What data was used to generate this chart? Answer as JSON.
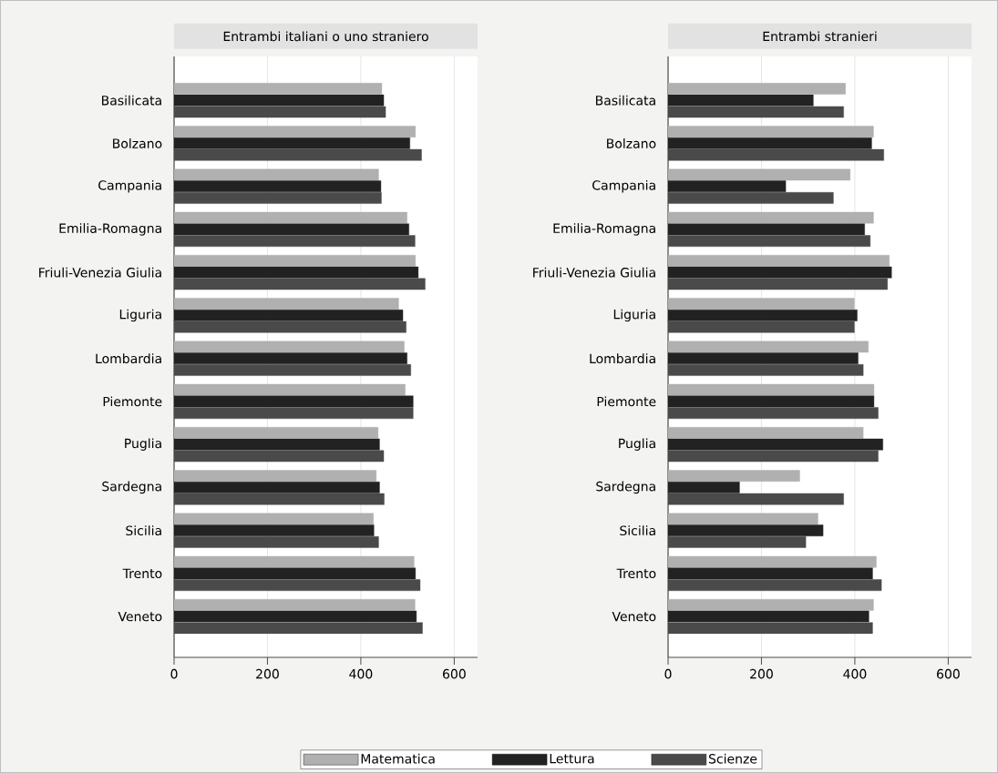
{
  "chart_data": [
    {
      "type": "bar",
      "orientation": "horizontal",
      "title": "Entrambi italiani o uno straniero",
      "categories": [
        "Basilicata",
        "Bolzano",
        "Campania",
        "Emilia-Romagna",
        "Friuli-Venezia Giulia",
        "Liguria",
        "Lombardia",
        "Piemonte",
        "Puglia",
        "Sardegna",
        "Sicilia",
        "Trento",
        "Veneto"
      ],
      "series": [
        {
          "name": "Matematica",
          "color": "#b0b0b0",
          "values": [
            445,
            517,
            438,
            499,
            517,
            481,
            493,
            495,
            437,
            433,
            427,
            514,
            516
          ]
        },
        {
          "name": "Lettura",
          "color": "#222222",
          "values": [
            449,
            505,
            443,
            503,
            523,
            490,
            499,
            512,
            440,
            440,
            428,
            517,
            519
          ]
        },
        {
          "name": "Scienze",
          "color": "#4a4a4a",
          "values": [
            453,
            530,
            444,
            516,
            538,
            497,
            507,
            512,
            449,
            450,
            438,
            527,
            532
          ]
        }
      ],
      "xlim": [
        0,
        650
      ],
      "xticks": [
        0,
        200,
        400,
        600
      ],
      "grid": "x",
      "legend": "bottom"
    },
    {
      "type": "bar",
      "orientation": "horizontal",
      "title": "Entrambi stranieri",
      "categories": [
        "Basilicata",
        "Bolzano",
        "Campania",
        "Emilia-Romagna",
        "Friuli-Venezia Giulia",
        "Liguria",
        "Lombardia",
        "Piemonte",
        "Puglia",
        "Sardegna",
        "Sicilia",
        "Trento",
        "Veneto"
      ],
      "series": [
        {
          "color": "#b0b0b0",
          "values": [
            380,
            440,
            390,
            440,
            474,
            399,
            429,
            441,
            418,
            282,
            321,
            446,
            440
          ]
        },
        {
          "color": "#222222",
          "values": [
            311,
            436,
            252,
            421,
            479,
            405,
            407,
            441,
            460,
            153,
            332,
            438,
            430
          ]
        },
        {
          "color": "#4a4a4a",
          "values": [
            376,
            462,
            354,
            433,
            470,
            399,
            418,
            450,
            450,
            376,
            295,
            457,
            438
          ]
        }
      ],
      "xlim": [
        0,
        650
      ],
      "xticks": [
        0,
        200,
        400,
        600
      ],
      "grid": "x"
    }
  ]
}
